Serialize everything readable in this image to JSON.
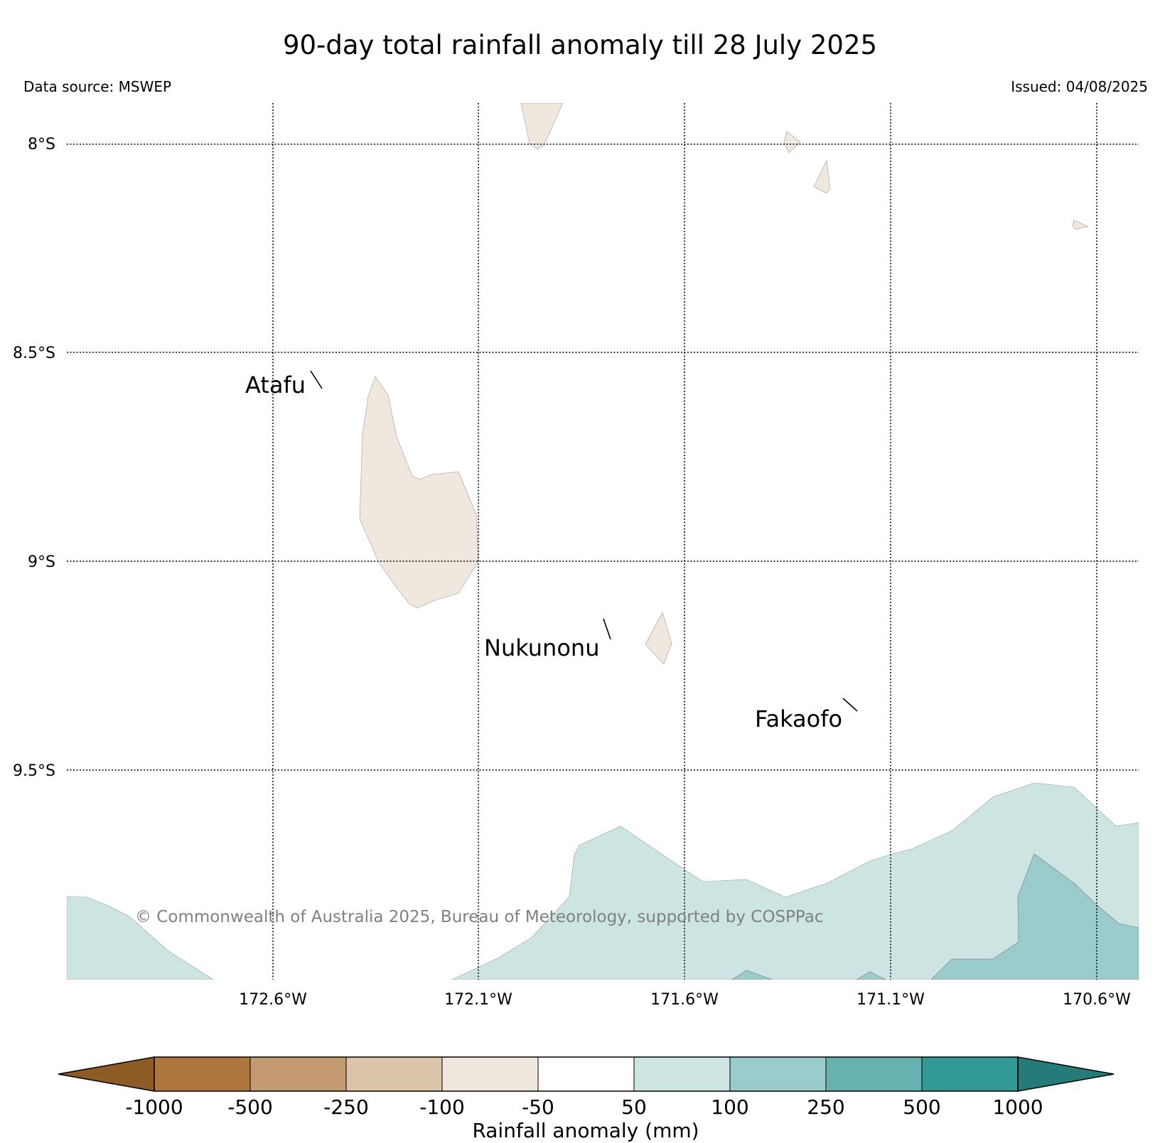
{
  "header": {
    "title": "90-day total rainfall anomaly till 28 July 2025",
    "data_source": "Data source: MSWEP",
    "issued": "Issued: 04/08/2025"
  },
  "map": {
    "lat_labels": [
      "8°S",
      "8.5°S",
      "9°S",
      "9.5°S"
    ],
    "lon_labels": [
      "172.6°W",
      "172.1°W",
      "171.6°W",
      "171.1°W",
      "170.6°W"
    ],
    "places": {
      "atafu": "Atafu",
      "nukunonu": "Nukunonu",
      "fakaofo": "Fakaofo"
    },
    "copyright": "© Commonwealth of Australia 2025, Bureau of Meteorology, supported by COSPPac"
  },
  "legend": {
    "title": "Rainfall anomaly (mm)",
    "ticks": [
      "-1000",
      "-500",
      "-250",
      "-100",
      "-50",
      "50",
      "100",
      "250",
      "500",
      "1000"
    ],
    "colors": [
      "#8e5a25",
      "#ae773e",
      "#c49a70",
      "#dcc4aa",
      "#f0e7de",
      "#ffffff",
      "#cce5e3",
      "#99cccb",
      "#66b2b1",
      "#339996",
      "#267a78"
    ]
  }
}
